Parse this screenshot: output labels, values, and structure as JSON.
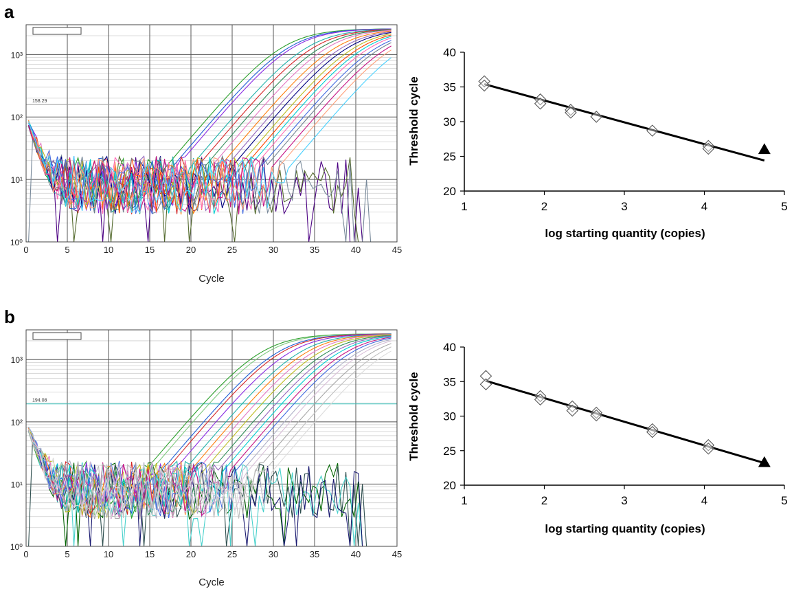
{
  "panels": [
    {
      "label": "a",
      "amplification": {
        "xlabel": "Cycle",
        "x_ticks": [
          "0",
          "5",
          "10",
          "15",
          "20",
          "25",
          "30",
          "35",
          "40",
          "45"
        ],
        "y_ticks": [
          "10⁰",
          "10¹",
          "10²",
          "10³"
        ],
        "threshold_label": "158.29"
      },
      "standard": {
        "ylabel": "Threshold cycle",
        "xlabel": "log starting quantity (copies)",
        "x_ticks": [
          "1",
          "2",
          "3",
          "4",
          "5"
        ],
        "y_ticks": [
          "20",
          "25",
          "30",
          "35",
          "40"
        ]
      }
    },
    {
      "label": "b",
      "amplification": {
        "xlabel": "Cycle",
        "x_ticks": [
          "0",
          "5",
          "10",
          "15",
          "20",
          "25",
          "30",
          "35",
          "40",
          "45"
        ],
        "y_ticks": [
          "10⁰",
          "10¹",
          "10²",
          "10³"
        ],
        "threshold_label": "194.08"
      },
      "standard": {
        "ylabel": "Threshold cycle",
        "xlabel": "log starting quantity (copies)",
        "x_ticks": [
          "1",
          "2",
          "3",
          "4",
          "5"
        ],
        "y_ticks": [
          "20",
          "25",
          "30",
          "35",
          "40"
        ]
      }
    }
  ],
  "chart_data": [
    {
      "panel": "a",
      "type": "line",
      "scale_y": "log",
      "xlabel": "Cycle",
      "ylabel": "",
      "xlim": [
        0,
        45
      ],
      "ylim": [
        1,
        3000
      ],
      "grid": true,
      "threshold": 158.29,
      "threshold_color": "#9a9a9a",
      "series_shape": "sigmoid amplification curves with noisy baseline",
      "series": [
        {
          "ct": 23.5,
          "color": "#2ca02c"
        },
        {
          "ct": 24.3,
          "color": "#1f5fd6"
        },
        {
          "ct": 24.8,
          "color": "#8a2be2"
        },
        {
          "ct": 26.5,
          "color": "#20b2aa"
        },
        {
          "ct": 27.3,
          "color": "#d62728"
        },
        {
          "ct": 28.2,
          "color": "#2e8b57"
        },
        {
          "ct": 29.0,
          "color": "#e377c2"
        },
        {
          "ct": 30.0,
          "color": "#ff7f0e"
        },
        {
          "ct": 30.8,
          "color": "#9467bd"
        },
        {
          "ct": 31.5,
          "color": "#000080"
        },
        {
          "ct": 32.3,
          "color": "#bcbd22"
        },
        {
          "ct": 33.0,
          "color": "#ff4500"
        },
        {
          "ct": 33.6,
          "color": "#00ced1"
        },
        {
          "ct": 34.2,
          "color": "#ff69b4"
        },
        {
          "ct": 35.0,
          "color": "#4169e1"
        },
        {
          "ct": 35.6,
          "color": "#708090"
        },
        {
          "ct": 36.4,
          "color": "#c71585"
        },
        {
          "ct": 37.2,
          "color": "#ffa07a"
        },
        {
          "ct": 38.5,
          "color": "#48d1ff"
        }
      ],
      "baseline_only": [
        {
          "color": "#4b0082"
        },
        {
          "color": "#556b2f"
        },
        {
          "color": "#778899"
        }
      ]
    },
    {
      "panel": "a",
      "type": "scatter",
      "xlabel": "log starting quantity (copies)",
      "ylabel": "Threshold cycle",
      "xlim": [
        1,
        5
      ],
      "ylim": [
        20,
        40
      ],
      "points": [
        {
          "x": 1.25,
          "y": 35.8
        },
        {
          "x": 1.25,
          "y": 35.2
        },
        {
          "x": 1.95,
          "y": 33.2
        },
        {
          "x": 1.95,
          "y": 32.6
        },
        {
          "x": 2.33,
          "y": 31.7
        },
        {
          "x": 2.33,
          "y": 31.3
        },
        {
          "x": 2.65,
          "y": 30.7
        },
        {
          "x": 3.35,
          "y": 28.7
        },
        {
          "x": 4.05,
          "y": 26.5
        },
        {
          "x": 4.05,
          "y": 26.1
        }
      ],
      "fit": {
        "x": [
          1.25,
          4.75
        ],
        "y": [
          35.4,
          24.4
        ]
      },
      "unknown": {
        "x": 4.75,
        "y": 26.0,
        "marker": "triangle"
      }
    },
    {
      "panel": "b",
      "type": "line",
      "scale_y": "log",
      "xlabel": "Cycle",
      "ylabel": "",
      "xlim": [
        0,
        45
      ],
      "ylim": [
        1,
        3000
      ],
      "grid": true,
      "threshold": 194.08,
      "threshold_color": "#3cc8c0",
      "series_shape": "sigmoid amplification curves with noisy baseline",
      "series": [
        {
          "ct": 21.5,
          "color": "#2ca02c"
        },
        {
          "ct": 22.2,
          "color": "#7fc97f"
        },
        {
          "ct": 23.5,
          "color": "#1f5fd6"
        },
        {
          "ct": 24.0,
          "color": "#d62728"
        },
        {
          "ct": 25.0,
          "color": "#8a2be2"
        },
        {
          "ct": 26.2,
          "color": "#20b2aa"
        },
        {
          "ct": 27.0,
          "color": "#ff7f0e"
        },
        {
          "ct": 27.8,
          "color": "#e377c2"
        },
        {
          "ct": 28.6,
          "color": "#bcbd22"
        },
        {
          "ct": 29.5,
          "color": "#2e8b57"
        },
        {
          "ct": 30.3,
          "color": "#9467bd"
        },
        {
          "ct": 31.0,
          "color": "#00ced1"
        },
        {
          "ct": 31.8,
          "color": "#c71585"
        },
        {
          "ct": 32.5,
          "color": "#4169e1"
        },
        {
          "ct": 33.3,
          "color": "#b0b0c8"
        },
        {
          "ct": 34.0,
          "color": "#d8bfd8"
        },
        {
          "ct": 35.0,
          "color": "#a9a9a9"
        },
        {
          "ct": 36.0,
          "color": "#c0c0c0"
        },
        {
          "ct": 37.0,
          "color": "#dcdcdc"
        }
      ],
      "baseline_only": [
        {
          "color": "#006400"
        },
        {
          "color": "#2f4f4f"
        },
        {
          "color": "#48d1cc"
        },
        {
          "color": "#191970"
        }
      ]
    },
    {
      "panel": "b",
      "type": "scatter",
      "xlabel": "log starting quantity (copies)",
      "ylabel": "Threshold cycle",
      "xlim": [
        1,
        5
      ],
      "ylim": [
        20,
        40
      ],
      "points": [
        {
          "x": 1.27,
          "y": 35.8
        },
        {
          "x": 1.27,
          "y": 34.6
        },
        {
          "x": 1.95,
          "y": 32.9
        },
        {
          "x": 1.95,
          "y": 32.4
        },
        {
          "x": 2.35,
          "y": 31.4
        },
        {
          "x": 2.35,
          "y": 30.8
        },
        {
          "x": 2.65,
          "y": 30.5
        },
        {
          "x": 2.65,
          "y": 30.1
        },
        {
          "x": 3.35,
          "y": 28.1
        },
        {
          "x": 3.35,
          "y": 27.7
        },
        {
          "x": 4.05,
          "y": 25.8
        },
        {
          "x": 4.05,
          "y": 25.3
        }
      ],
      "fit": {
        "x": [
          1.27,
          4.75
        ],
        "y": [
          35.1,
          23.2
        ]
      },
      "unknown": {
        "x": 4.75,
        "y": 23.3,
        "marker": "triangle"
      }
    }
  ]
}
